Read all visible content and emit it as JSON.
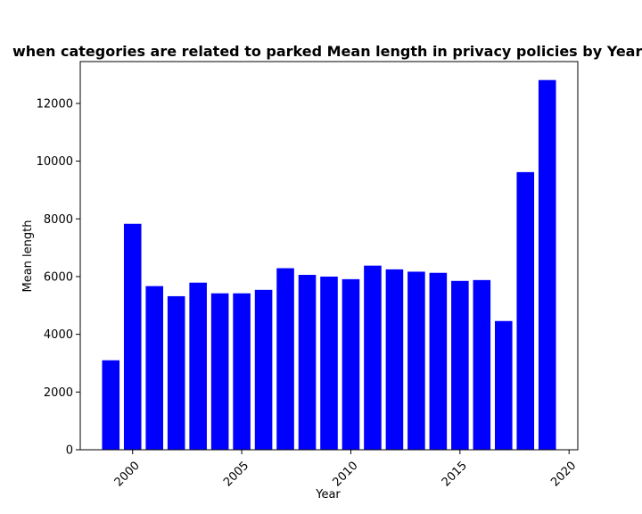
{
  "chart_data": {
    "type": "bar",
    "title": "when categories are related to parked Mean length in privacy policies by Year",
    "xlabel": "Year",
    "ylabel": "Mean length",
    "x": [
      1999,
      2000,
      2001,
      2002,
      2003,
      2004,
      2005,
      2006,
      2007,
      2008,
      2009,
      2010,
      2011,
      2012,
      2013,
      2014,
      2015,
      2016,
      2017,
      2018,
      2019
    ],
    "values": [
      3100,
      7830,
      5670,
      5320,
      5790,
      5420,
      5420,
      5540,
      6290,
      6060,
      6000,
      5910,
      6380,
      6250,
      6170,
      6130,
      5850,
      5880,
      4460,
      9620,
      12810
    ],
    "xlim": [
      1997.6,
      2020.4
    ],
    "ylim": [
      0,
      13450
    ],
    "xticks": [
      "2000",
      "2005",
      "2010",
      "2015",
      "2020"
    ],
    "xtick_values": [
      2000,
      2005,
      2010,
      2015,
      2020
    ],
    "yticks": [
      "0",
      "2000",
      "4000",
      "6000",
      "8000",
      "10000",
      "12000"
    ],
    "ytick_values": [
      0,
      2000,
      4000,
      6000,
      8000,
      10000,
      12000
    ],
    "bar_color": "#0000ff",
    "grid": false,
    "legend": "none"
  }
}
